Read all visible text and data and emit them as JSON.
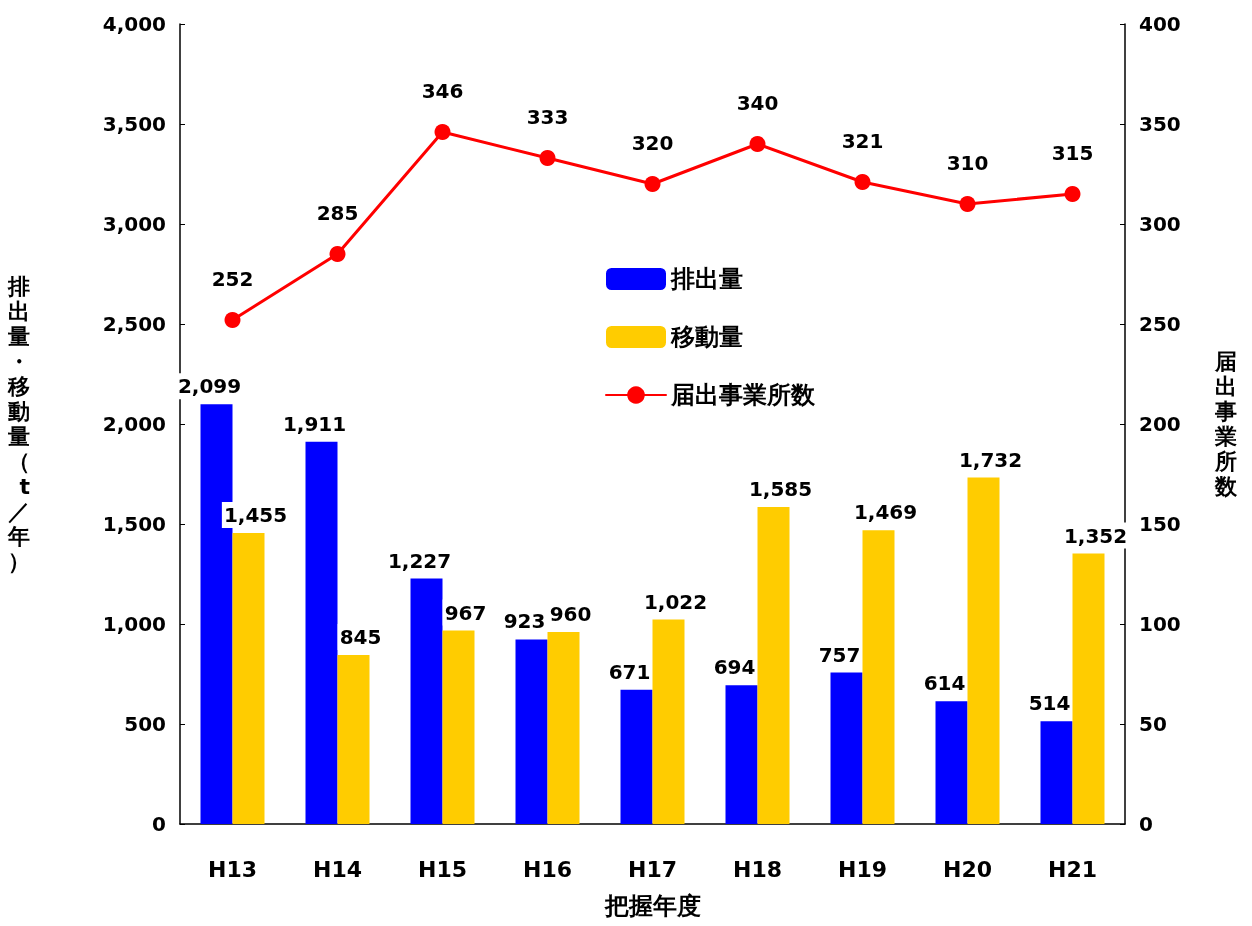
{
  "chart_data": {
    "type": "bar",
    "xlabel": "把握年度",
    "ylabel": "排出量・移動量（t／年）",
    "y2label": "届出事業所数",
    "categories": [
      "H13",
      "H14",
      "H15",
      "H16",
      "H17",
      "H18",
      "H19",
      "H20",
      "H21"
    ],
    "series": [
      {
        "name": "排出量",
        "color": "#0000ff",
        "values": [
          2099,
          1911,
          1227,
          923,
          671,
          694,
          757,
          614,
          514
        ],
        "value_labels": [
          "2,099",
          "1,911",
          "1,227",
          "923",
          "671",
          "694",
          "757",
          "614",
          "514"
        ]
      },
      {
        "name": "移動量",
        "color": "#ffcc00",
        "values": [
          1455,
          845,
          967,
          960,
          1022,
          1585,
          1469,
          1732,
          1352
        ],
        "value_labels": [
          "1,455",
          "845",
          "967",
          "960",
          "1,022",
          "1,585",
          "1,469",
          "1,732",
          "1,352"
        ]
      },
      {
        "name": "届出事業所数",
        "type": "line",
        "axis": "y2",
        "color": "#ff0000",
        "values": [
          252,
          285,
          346,
          333,
          320,
          340,
          321,
          310,
          315
        ]
      }
    ],
    "ylim": [
      0,
      4000
    ],
    "yticks": [
      0,
      500,
      {
        "value": 1000,
        "label": "1,000"
      },
      {
        "value": 1500,
        "label": "1,500"
      },
      {
        "value": 2000,
        "label": "2,000"
      },
      {
        "value": 2500,
        "label": "2,500"
      },
      {
        "value": 3000,
        "label": "3,000"
      },
      {
        "value": 3500,
        "label": "3,500"
      },
      {
        "value": 4000,
        "label": "4,000"
      }
    ],
    "y2lim": [
      0,
      400
    ],
    "y2ticks": [
      0,
      50,
      100,
      150,
      200,
      250,
      300,
      350,
      400
    ],
    "data_labels": true,
    "marker": "circle",
    "line_style": "solid",
    "grid": false,
    "legend": "top"
  }
}
